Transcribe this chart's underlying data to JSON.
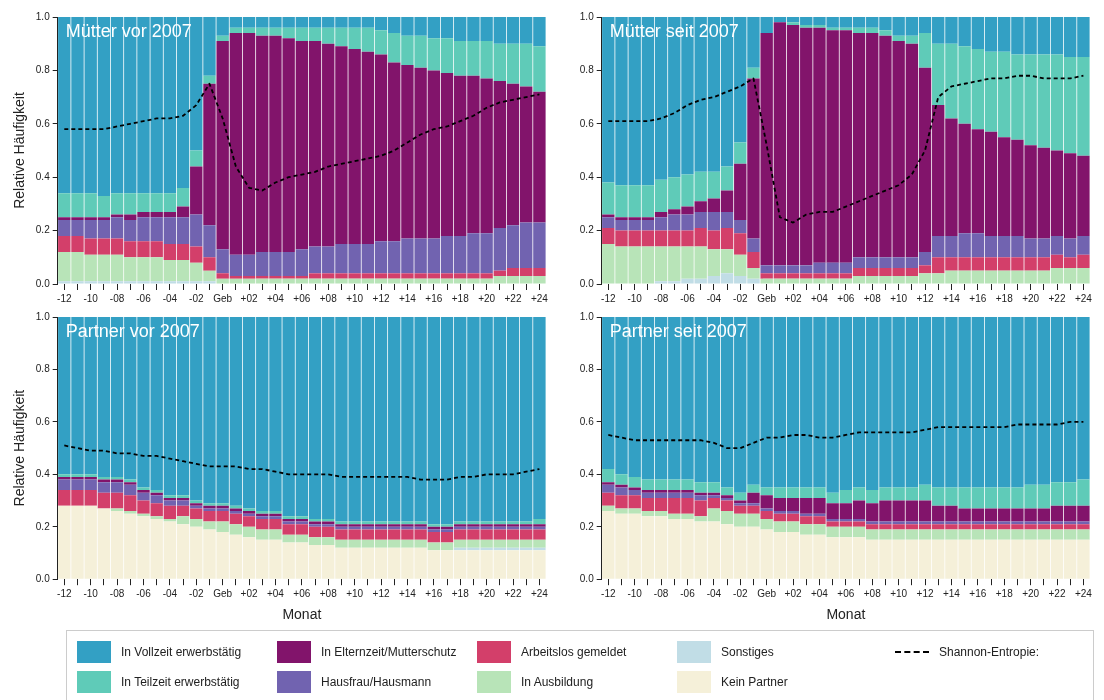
{
  "chart_data": [
    {
      "type": "bar",
      "title": "Mütter vor 2007",
      "ylabel": "Relative Häufigkeit",
      "stacked": true,
      "legend": "bottom",
      "ylim": [
        0,
        1
      ],
      "yticks": [
        {
          "value": 0,
          "label": "0.0"
        },
        {
          "value": 0.2,
          "label": "0.2"
        },
        {
          "value": 0.4,
          "label": "0.4"
        },
        {
          "value": 0.6,
          "label": "0.6"
        },
        {
          "value": 0.8,
          "label": "0.8"
        },
        {
          "value": 1,
          "label": "1.0"
        }
      ],
      "categories": [
        "-12",
        null,
        "-10",
        null,
        "-08",
        null,
        "-06",
        null,
        "-04",
        null,
        "-02",
        null,
        "Geb",
        null,
        "+02",
        null,
        "+04",
        null,
        "+06",
        null,
        "+08",
        null,
        "+10",
        null,
        "+12",
        null,
        "+14",
        null,
        "+16",
        null,
        "+18",
        null,
        "+20",
        null,
        "+22",
        null,
        "+24"
      ],
      "series": [
        {
          "name": "Sonstiges",
          "color": "#c1dde6",
          "values": [
            0.01,
            0.01,
            0.01,
            0.01,
            0.01,
            0.01,
            0.01,
            0.01,
            0.01,
            0.01,
            0.01,
            0.01,
            null,
            null,
            null,
            null,
            null,
            null,
            null,
            null,
            null,
            null,
            null,
            null,
            null,
            null,
            null,
            null,
            null,
            null,
            null,
            null,
            null,
            null,
            null,
            null,
            null
          ]
        },
        {
          "name": "In Ausbildung",
          "color": "#b8e4b8",
          "values": [
            0.11,
            0.11,
            0.1,
            0.1,
            0.1,
            0.09,
            0.09,
            0.09,
            0.08,
            0.08,
            0.07,
            0.04,
            0.02,
            0.02,
            0.02,
            0.02,
            0.02,
            0.02,
            0.02,
            0.02,
            0.02,
            0.02,
            0.02,
            0.02,
            0.02,
            0.02,
            0.02,
            0.02,
            0.02,
            0.02,
            0.02,
            0.02,
            0.02,
            0.03,
            0.03,
            0.03,
            0.03
          ]
        },
        {
          "name": "Arbeitslos gemeldet",
          "color": "#d33f6a",
          "values": [
            0.06,
            0.06,
            0.06,
            0.06,
            0.06,
            0.06,
            0.06,
            0.06,
            0.06,
            0.06,
            0.06,
            0.05,
            0.02,
            0.01,
            0.01,
            0.01,
            0.01,
            0.01,
            0.01,
            0.02,
            0.02,
            0.02,
            0.02,
            0.02,
            0.02,
            0.02,
            0.02,
            0.02,
            0.02,
            0.02,
            0.02,
            0.02,
            0.02,
            0.02,
            0.03,
            0.03,
            0.03
          ]
        },
        {
          "name": "Hausfrau/Hausmann",
          "color": "#7163b0",
          "values": [
            0.06,
            0.06,
            0.07,
            0.07,
            0.08,
            0.08,
            0.09,
            0.09,
            0.1,
            0.1,
            0.12,
            0.12,
            0.09,
            0.08,
            0.08,
            0.09,
            0.09,
            0.09,
            0.1,
            0.1,
            0.1,
            0.11,
            0.11,
            0.11,
            0.12,
            0.12,
            0.13,
            0.13,
            0.13,
            0.14,
            0.14,
            0.15,
            0.15,
            0.16,
            0.16,
            0.17,
            0.17
          ]
        },
        {
          "name": "In Elternzeit/Mutterschutz",
          "color": "#82146b",
          "values": [
            0.01,
            0.01,
            0.01,
            0.01,
            0.01,
            0.02,
            0.02,
            0.02,
            0.02,
            0.04,
            0.18,
            0.53,
            0.78,
            0.83,
            0.83,
            0.81,
            0.81,
            0.8,
            0.78,
            0.77,
            0.76,
            0.74,
            0.73,
            0.72,
            0.7,
            0.67,
            0.65,
            0.64,
            0.63,
            0.61,
            0.6,
            0.59,
            0.58,
            0.55,
            0.53,
            0.51,
            0.49
          ]
        },
        {
          "name": "In Teilzeit erwerbstätig",
          "color": "#5fcbb8",
          "values": [
            0.09,
            0.09,
            0.09,
            0.08,
            0.08,
            0.08,
            0.07,
            0.07,
            0.07,
            0.07,
            0.06,
            0.03,
            0.02,
            0.02,
            0.02,
            0.03,
            0.03,
            0.04,
            0.05,
            0.05,
            0.06,
            0.07,
            0.08,
            0.09,
            0.09,
            0.11,
            0.11,
            0.12,
            0.12,
            0.13,
            0.13,
            0.13,
            0.14,
            0.14,
            0.15,
            0.16,
            0.17
          ]
        },
        {
          "name": "In Vollzeit erwerbstätig",
          "color": "#33a0c4",
          "values": [
            0.66,
            0.66,
            0.66,
            0.67,
            0.66,
            0.66,
            0.66,
            0.66,
            0.66,
            0.64,
            0.5,
            0.22,
            0.07,
            0.04,
            0.04,
            0.04,
            0.04,
            0.04,
            0.04,
            0.04,
            0.04,
            0.04,
            0.04,
            0.04,
            0.05,
            0.06,
            0.07,
            0.07,
            0.08,
            0.08,
            0.09,
            0.09,
            0.09,
            0.1,
            0.1,
            0.1,
            0.11
          ]
        },
        {
          "name": "Shannon-Entropie:",
          "type": "line",
          "color": "#000000",
          "line_style": "dashed",
          "marker": "none",
          "values": [
            0.58,
            0.58,
            0.58,
            0.58,
            0.59,
            0.6,
            0.61,
            0.62,
            0.62,
            0.63,
            0.67,
            0.75,
            0.62,
            0.44,
            0.36,
            0.35,
            0.38,
            0.4,
            0.41,
            0.42,
            0.44,
            0.45,
            0.46,
            0.47,
            0.48,
            0.5,
            0.53,
            0.56,
            0.58,
            0.59,
            0.61,
            0.63,
            0.66,
            0.68,
            0.69,
            0.7,
            0.71
          ]
        }
      ]
    },
    {
      "type": "bar",
      "title": "Mütter seit 2007",
      "stacked": true,
      "legend": "bottom",
      "ylim": [
        0,
        1
      ],
      "yticks": [
        {
          "value": 0,
          "label": "0.0"
        },
        {
          "value": 0.2,
          "label": "0.2"
        },
        {
          "value": 0.4,
          "label": "0.4"
        },
        {
          "value": 0.6,
          "label": "0.6"
        },
        {
          "value": 0.8,
          "label": "0.8"
        },
        {
          "value": 1,
          "label": "1.0"
        }
      ],
      "categories": [
        "-12",
        null,
        "-10",
        null,
        "-08",
        null,
        "-06",
        null,
        "-04",
        null,
        "-02",
        null,
        "Geb",
        null,
        "+02",
        null,
        "+04",
        null,
        "+06",
        null,
        "+08",
        null,
        "+10",
        null,
        "+12",
        null,
        "+14",
        null,
        "+16",
        null,
        "+18",
        null,
        "+20",
        null,
        "+22",
        null,
        "+24"
      ],
      "series": [
        {
          "name": "Sonstiges",
          "color": "#c1dde6",
          "values": [
            null,
            null,
            null,
            null,
            0.01,
            0.01,
            0.02,
            0.02,
            0.03,
            0.04,
            0.03,
            0.02,
            null,
            null,
            null,
            null,
            null,
            null,
            null,
            null,
            null,
            null,
            null,
            null,
            null,
            null,
            null,
            null,
            null,
            null,
            null,
            null,
            null,
            null,
            null,
            null,
            null
          ]
        },
        {
          "name": "In Ausbildung",
          "color": "#b8e4b8",
          "values": [
            0.15,
            0.14,
            0.14,
            0.14,
            0.13,
            0.13,
            0.12,
            0.12,
            0.1,
            0.09,
            0.08,
            0.04,
            0.02,
            0.02,
            0.02,
            0.02,
            0.02,
            0.02,
            0.02,
            0.03,
            0.03,
            0.03,
            0.03,
            0.03,
            0.04,
            0.04,
            0.05,
            0.05,
            0.05,
            0.05,
            0.05,
            0.05,
            0.05,
            0.05,
            0.06,
            0.06,
            0.06
          ]
        },
        {
          "name": "Arbeitslos gemeldet",
          "color": "#d33f6a",
          "values": [
            0.06,
            0.06,
            0.06,
            0.06,
            0.06,
            0.06,
            0.06,
            0.07,
            0.07,
            0.08,
            0.08,
            0.06,
            0.02,
            0.02,
            0.02,
            0.02,
            0.02,
            0.02,
            0.02,
            0.03,
            0.03,
            0.03,
            0.03,
            0.03,
            0.03,
            0.06,
            0.05,
            0.05,
            0.05,
            0.05,
            0.05,
            0.05,
            0.05,
            0.05,
            0.05,
            0.04,
            0.05
          ]
        },
        {
          "name": "Hausfrau/Hausmann",
          "color": "#7163b0",
          "values": [
            0.04,
            0.04,
            0.04,
            0.04,
            0.05,
            0.06,
            0.06,
            0.06,
            0.07,
            0.06,
            0.05,
            0.05,
            0.03,
            0.03,
            0.03,
            0.03,
            0.04,
            0.04,
            0.04,
            0.04,
            0.04,
            0.04,
            0.04,
            0.04,
            0.05,
            0.08,
            0.08,
            0.09,
            0.09,
            0.08,
            0.08,
            0.08,
            0.07,
            0.07,
            0.07,
            0.07,
            0.07
          ]
        },
        {
          "name": "In Elternzeit/Mutterschutz",
          "color": "#82146b",
          "values": [
            0.01,
            0.01,
            0.01,
            0.01,
            0.02,
            0.02,
            0.03,
            0.04,
            0.05,
            0.08,
            0.21,
            0.6,
            0.87,
            0.91,
            0.9,
            0.89,
            0.88,
            0.87,
            0.87,
            0.84,
            0.84,
            0.83,
            0.81,
            0.8,
            0.69,
            0.49,
            0.44,
            0.41,
            0.39,
            0.39,
            0.37,
            0.36,
            0.35,
            0.34,
            0.32,
            0.32,
            0.3
          ]
        },
        {
          "name": "In Teilzeit erwerbstätig",
          "color": "#5fcbb8",
          "values": [
            0.12,
            0.12,
            0.12,
            0.12,
            0.12,
            0.12,
            0.12,
            0.11,
            0.1,
            0.09,
            0.08,
            0.04,
            null,
            null,
            0.01,
            0.01,
            0.01,
            0.01,
            0.01,
            0.02,
            0.02,
            0.02,
            0.02,
            0.03,
            0.13,
            0.23,
            0.28,
            0.29,
            0.3,
            0.3,
            0.32,
            0.32,
            0.34,
            0.35,
            0.36,
            0.36,
            0.37
          ]
        },
        {
          "name": "In Vollzeit erwerbstätig",
          "color": "#33a0c4",
          "values": [
            0.62,
            0.63,
            0.63,
            0.63,
            0.61,
            0.6,
            0.59,
            0.58,
            0.58,
            0.56,
            0.47,
            0.19,
            0.06,
            0.02,
            0.02,
            0.03,
            0.03,
            0.04,
            0.04,
            0.04,
            0.04,
            0.05,
            0.07,
            0.07,
            0.06,
            0.1,
            0.1,
            0.11,
            0.12,
            0.13,
            0.13,
            0.14,
            0.14,
            0.14,
            0.14,
            0.15,
            0.15
          ]
        },
        {
          "name": "Shannon-Entropie:",
          "type": "line",
          "color": "#000000",
          "line_style": "dashed",
          "marker": "none",
          "values": [
            0.61,
            0.61,
            0.61,
            0.61,
            0.62,
            0.64,
            0.67,
            0.69,
            0.7,
            0.72,
            0.74,
            0.77,
            0.52,
            0.25,
            0.23,
            0.26,
            0.27,
            0.27,
            0.29,
            0.31,
            0.33,
            0.35,
            0.37,
            0.41,
            0.5,
            0.7,
            0.74,
            0.75,
            0.76,
            0.77,
            0.77,
            0.78,
            0.78,
            0.77,
            0.77,
            0.77,
            0.78
          ]
        }
      ]
    },
    {
      "type": "bar",
      "title": "Partner vor 2007",
      "ylabel": "Relative Häufigkeit",
      "xlabel": "Monat",
      "stacked": true,
      "legend": "bottom",
      "ylim": [
        0,
        1
      ],
      "yticks": [
        {
          "value": 0,
          "label": "0.0"
        },
        {
          "value": 0.2,
          "label": "0.2"
        },
        {
          "value": 0.4,
          "label": "0.4"
        },
        {
          "value": 0.6,
          "label": "0.6"
        },
        {
          "value": 0.8,
          "label": "0.8"
        },
        {
          "value": 1,
          "label": "1.0"
        }
      ],
      "categories": [
        "-12",
        null,
        "-10",
        null,
        "-08",
        null,
        "-06",
        null,
        "-04",
        null,
        "-02",
        null,
        "Geb",
        null,
        "+02",
        null,
        "+04",
        null,
        "+06",
        null,
        "+08",
        null,
        "+10",
        null,
        "+12",
        null,
        "+14",
        null,
        "+16",
        null,
        "+18",
        null,
        "+20",
        null,
        "+22",
        null,
        "+24"
      ],
      "series": [
        {
          "name": "Kein Partner",
          "color": "#f5f0d9",
          "values": [
            0.28,
            0.28,
            0.28,
            0.27,
            0.26,
            0.25,
            0.24,
            0.23,
            0.22,
            0.21,
            0.2,
            0.19,
            0.18,
            0.17,
            0.16,
            0.15,
            0.15,
            0.14,
            0.14,
            0.13,
            0.13,
            0.12,
            0.12,
            0.12,
            0.12,
            0.12,
            0.12,
            0.12,
            0.11,
            0.11,
            0.11,
            0.11,
            0.11,
            0.11,
            0.11,
            0.11,
            0.11
          ]
        },
        {
          "name": "Sonstiges",
          "color": "#c1dde6",
          "values": [
            null,
            null,
            null,
            null,
            null,
            null,
            null,
            null,
            null,
            null,
            null,
            null,
            null,
            null,
            null,
            null,
            null,
            null,
            null,
            null,
            null,
            null,
            null,
            null,
            null,
            null,
            null,
            null,
            null,
            null,
            0.01,
            0.01,
            0.01,
            0.01,
            0.01,
            0.01,
            0.01
          ]
        },
        {
          "name": "In Ausbildung",
          "color": "#b8e4b8",
          "values": [
            null,
            null,
            null,
            null,
            0.01,
            0.01,
            0.01,
            0.01,
            0.01,
            0.03,
            0.03,
            0.03,
            0.04,
            0.04,
            0.04,
            0.04,
            0.04,
            0.03,
            0.03,
            0.03,
            0.03,
            0.03,
            0.03,
            0.03,
            0.03,
            0.03,
            0.03,
            0.03,
            0.03,
            0.03,
            0.03,
            0.03,
            0.03,
            0.03,
            0.03,
            0.03,
            0.03
          ]
        },
        {
          "name": "Arbeitslos gemeldet",
          "color": "#d33f6a",
          "values": [
            0.06,
            0.06,
            0.06,
            0.06,
            0.06,
            0.06,
            0.05,
            0.05,
            0.05,
            0.04,
            0.04,
            0.04,
            0.04,
            0.04,
            0.04,
            0.04,
            0.04,
            0.04,
            0.04,
            0.04,
            0.04,
            0.04,
            0.04,
            0.04,
            0.04,
            0.04,
            0.04,
            0.04,
            0.04,
            0.04,
            0.04,
            0.04,
            0.04,
            0.04,
            0.04,
            0.04,
            0.04
          ]
        },
        {
          "name": "Hausfrau/Hausmann",
          "color": "#7163b0",
          "values": [
            0.04,
            0.04,
            0.04,
            0.04,
            0.04,
            0.04,
            0.03,
            0.03,
            0.02,
            0.02,
            0.01,
            0.01,
            0.01,
            0.01,
            0.01,
            0.01,
            0.01,
            0.01,
            0.01,
            0.01,
            0.01,
            0.01,
            0.01,
            0.01,
            0.01,
            0.01,
            0.01,
            0.01,
            0.01,
            0.01,
            0.01,
            0.01,
            0.01,
            0.01,
            0.01,
            0.01,
            0.01
          ]
        },
        {
          "name": "In Elternzeit/Mutterschutz",
          "color": "#82146b",
          "values": [
            0.01,
            0.01,
            0.01,
            0.01,
            0.01,
            0.01,
            0.01,
            0.01,
            0.01,
            0.01,
            0.01,
            0.01,
            0.01,
            0.01,
            0.01,
            0.01,
            0.01,
            0.01,
            0.01,
            0.01,
            0.01,
            0.01,
            0.01,
            0.01,
            0.01,
            0.01,
            0.01,
            0.01,
            0.01,
            0.01,
            0.01,
            0.01,
            0.01,
            0.01,
            0.01,
            0.01,
            0.01
          ]
        },
        {
          "name": "In Teilzeit erwerbstätig",
          "color": "#5fcbb8",
          "values": [
            0.01,
            0.01,
            0.01,
            0.01,
            0.01,
            0.01,
            0.01,
            0.01,
            0.01,
            0.01,
            0.01,
            0.01,
            0.01,
            0.01,
            0.01,
            0.01,
            0.01,
            0.01,
            0.01,
            0.01,
            0.01,
            0.01,
            0.01,
            0.01,
            0.01,
            0.01,
            0.01,
            0.01,
            0.01,
            0.01,
            0.01,
            0.01,
            0.01,
            0.01,
            0.01,
            0.01,
            0.02
          ]
        },
        {
          "name": "In Vollzeit erwerbstätig",
          "color": "#33a0c4",
          "values": [
            0.6,
            0.6,
            0.6,
            0.61,
            0.61,
            0.62,
            0.65,
            0.66,
            0.68,
            0.68,
            0.7,
            0.71,
            0.71,
            0.72,
            0.73,
            0.74,
            0.74,
            0.76,
            0.76,
            0.77,
            0.77,
            0.78,
            0.78,
            0.78,
            0.78,
            0.78,
            0.78,
            0.78,
            0.79,
            0.79,
            0.78,
            0.78,
            0.78,
            0.78,
            0.78,
            0.78,
            0.77
          ]
        },
        {
          "name": "Shannon-Entropie:",
          "type": "line",
          "color": "#000000",
          "line_style": "dashed",
          "marker": "none",
          "values": [
            0.51,
            0.5,
            0.49,
            0.49,
            0.48,
            0.48,
            0.47,
            0.47,
            0.46,
            0.45,
            0.44,
            0.43,
            0.43,
            0.43,
            0.42,
            0.42,
            0.41,
            0.4,
            0.4,
            0.4,
            0.4,
            0.39,
            0.39,
            0.39,
            0.39,
            0.39,
            0.39,
            0.38,
            0.38,
            0.38,
            0.39,
            0.39,
            0.4,
            0.4,
            0.4,
            0.41,
            0.42
          ]
        }
      ]
    },
    {
      "type": "bar",
      "title": "Partner seit 2007",
      "xlabel": "Monat",
      "stacked": true,
      "legend": "bottom",
      "ylim": [
        0,
        1
      ],
      "yticks": [
        {
          "value": 0,
          "label": "0.0"
        },
        {
          "value": 0.2,
          "label": "0.2"
        },
        {
          "value": 0.4,
          "label": "0.4"
        },
        {
          "value": 0.6,
          "label": "0.6"
        },
        {
          "value": 0.8,
          "label": "0.8"
        },
        {
          "value": 1,
          "label": "1.0"
        }
      ],
      "categories": [
        "-12",
        null,
        "-10",
        null,
        "-08",
        null,
        "-06",
        null,
        "-04",
        null,
        "-02",
        null,
        "Geb",
        null,
        "+02",
        null,
        "+04",
        null,
        "+06",
        null,
        "+08",
        null,
        "+10",
        null,
        "+12",
        null,
        "+14",
        null,
        "+16",
        null,
        "+18",
        null,
        "+20",
        null,
        "+22",
        null,
        "+24"
      ],
      "series": [
        {
          "name": "Kein Partner",
          "color": "#f5f0d9",
          "values": [
            0.26,
            0.25,
            0.25,
            0.24,
            0.24,
            0.23,
            0.23,
            0.22,
            0.22,
            0.21,
            0.2,
            0.2,
            0.19,
            0.18,
            0.18,
            0.17,
            0.17,
            0.16,
            0.16,
            0.16,
            0.15,
            0.15,
            0.15,
            0.15,
            0.15,
            0.15,
            0.15,
            0.15,
            0.15,
            0.15,
            0.15,
            0.15,
            0.15,
            0.15,
            0.15,
            0.15,
            0.15
          ]
        },
        {
          "name": "In Ausbildung",
          "color": "#b8e4b8",
          "values": [
            0.02,
            0.02,
            0.02,
            0.02,
            0.02,
            0.02,
            0.02,
            0.02,
            0.05,
            0.05,
            0.05,
            0.05,
            0.04,
            0.04,
            0.04,
            0.04,
            0.04,
            0.04,
            0.04,
            0.04,
            0.04,
            0.04,
            0.04,
            0.04,
            0.04,
            0.04,
            0.04,
            0.04,
            0.04,
            0.04,
            0.04,
            0.04,
            0.04,
            0.04,
            0.04,
            0.04,
            0.04
          ]
        },
        {
          "name": "Arbeitslos gemeldet",
          "color": "#d33f6a",
          "values": [
            0.05,
            0.05,
            0.05,
            0.05,
            0.05,
            0.06,
            0.06,
            0.06,
            0.04,
            0.04,
            0.03,
            0.03,
            0.03,
            0.03,
            0.03,
            0.03,
            0.03,
            0.02,
            0.02,
            0.02,
            0.02,
            0.02,
            0.02,
            0.02,
            0.02,
            0.02,
            0.02,
            0.02,
            0.02,
            0.02,
            0.02,
            0.02,
            0.02,
            0.02,
            0.02,
            0.02,
            0.02
          ]
        },
        {
          "name": "Hausfrau/Hausmann",
          "color": "#7163b0",
          "values": [
            0.03,
            0.03,
            0.02,
            0.02,
            0.02,
            0.02,
            0.02,
            0.02,
            0.01,
            0.01,
            0.01,
            0.01,
            0.01,
            0.01,
            0.01,
            0.01,
            0.01,
            0.01,
            0.01,
            0.01,
            0.01,
            0.01,
            0.01,
            0.01,
            0.01,
            0.01,
            0.01,
            0.01,
            0.01,
            0.01,
            0.01,
            0.01,
            0.01,
            0.01,
            0.01,
            0.01,
            0.01
          ]
        },
        {
          "name": "In Elternzeit/Mutterschutz",
          "color": "#82146b",
          "values": [
            0.01,
            0.01,
            0.01,
            0.01,
            0.01,
            0.01,
            0.01,
            0.01,
            0.01,
            0.01,
            0.01,
            0.04,
            0.05,
            0.05,
            0.05,
            0.06,
            0.06,
            0.06,
            0.06,
            0.07,
            0.07,
            0.08,
            0.08,
            0.08,
            0.08,
            0.06,
            0.06,
            0.05,
            0.05,
            0.05,
            0.05,
            0.05,
            0.05,
            0.05,
            0.06,
            0.06,
            0.06
          ]
        },
        {
          "name": "In Teilzeit erwerbstätig",
          "color": "#5fcbb8",
          "values": [
            0.05,
            0.04,
            0.04,
            0.04,
            0.04,
            0.04,
            0.04,
            0.04,
            0.04,
            0.03,
            0.03,
            0.03,
            0.03,
            0.04,
            0.04,
            0.04,
            0.04,
            0.04,
            0.05,
            0.05,
            0.05,
            0.05,
            0.05,
            0.05,
            0.06,
            0.07,
            0.07,
            0.08,
            0.08,
            0.08,
            0.08,
            0.08,
            0.09,
            0.09,
            0.09,
            0.09,
            0.1
          ]
        },
        {
          "name": "In Vollzeit erwerbstätig",
          "color": "#33a0c4",
          "values": [
            0.58,
            0.6,
            0.61,
            0.62,
            0.62,
            0.62,
            0.62,
            0.63,
            0.63,
            0.65,
            0.67,
            0.64,
            0.65,
            0.65,
            0.65,
            0.65,
            0.65,
            0.67,
            0.66,
            0.65,
            0.66,
            0.65,
            0.65,
            0.65,
            0.64,
            0.65,
            0.65,
            0.65,
            0.65,
            0.65,
            0.65,
            0.65,
            0.64,
            0.64,
            0.63,
            0.63,
            0.62
          ]
        },
        {
          "name": "Shannon-Entropie:",
          "type": "line",
          "color": "#000000",
          "line_style": "dashed",
          "marker": "none",
          "values": [
            0.55,
            0.54,
            0.53,
            0.53,
            0.53,
            0.53,
            0.53,
            0.53,
            0.52,
            0.5,
            0.5,
            0.52,
            0.54,
            0.54,
            0.55,
            0.55,
            0.54,
            0.54,
            0.55,
            0.56,
            0.56,
            0.56,
            0.56,
            0.56,
            0.57,
            0.58,
            0.58,
            0.58,
            0.58,
            0.58,
            0.58,
            0.59,
            0.59,
            0.59,
            0.59,
            0.6,
            0.6
          ]
        }
      ]
    }
  ]
}
